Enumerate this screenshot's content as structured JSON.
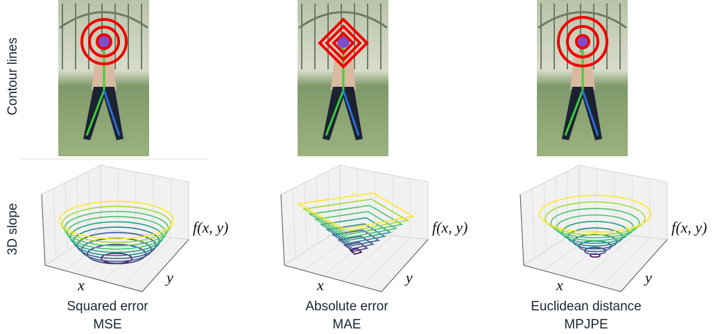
{
  "row_labels": [
    "Contour lines",
    "3D slope"
  ],
  "panels": [
    {
      "caption": "Squared error",
      "abbreviation": "MSE",
      "axis_labels": {
        "x": "x",
        "y": "y",
        "z": "f(x, y)"
      }
    },
    {
      "caption": "Absolute error",
      "abbreviation": "MAE",
      "axis_labels": {
        "x": "x",
        "y": "y",
        "z": "f(x, y)"
      }
    },
    {
      "caption": "Euclidean distance",
      "abbreviation": "MPJPE",
      "axis_labels": {
        "x": "x",
        "y": "y",
        "z": "f(x, y)"
      }
    }
  ]
}
